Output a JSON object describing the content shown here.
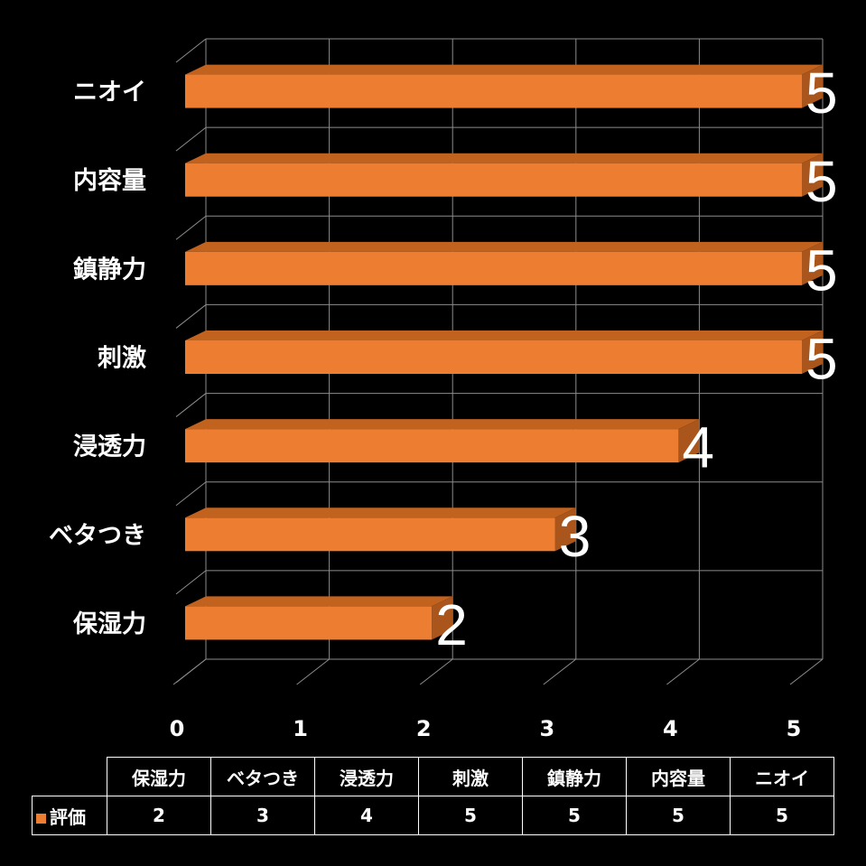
{
  "chart_data": {
    "type": "bar",
    "orientation": "horizontal",
    "style": "3d",
    "categories": [
      "保湿力",
      "ベタつき",
      "浸透力",
      "刺激",
      "鎮静力",
      "内容量",
      "ニオイ"
    ],
    "series": [
      {
        "name": "評価",
        "values": [
          2,
          3,
          4,
          5,
          5,
          5,
          5
        ],
        "color": "#ED7D31"
      }
    ],
    "xlim": [
      0,
      5
    ],
    "x_ticks": [
      "0",
      "1",
      "2",
      "3",
      "4",
      "5"
    ],
    "grid": true,
    "data_labels": true,
    "background": "#000000",
    "data_table": true,
    "legend": "in data table"
  }
}
